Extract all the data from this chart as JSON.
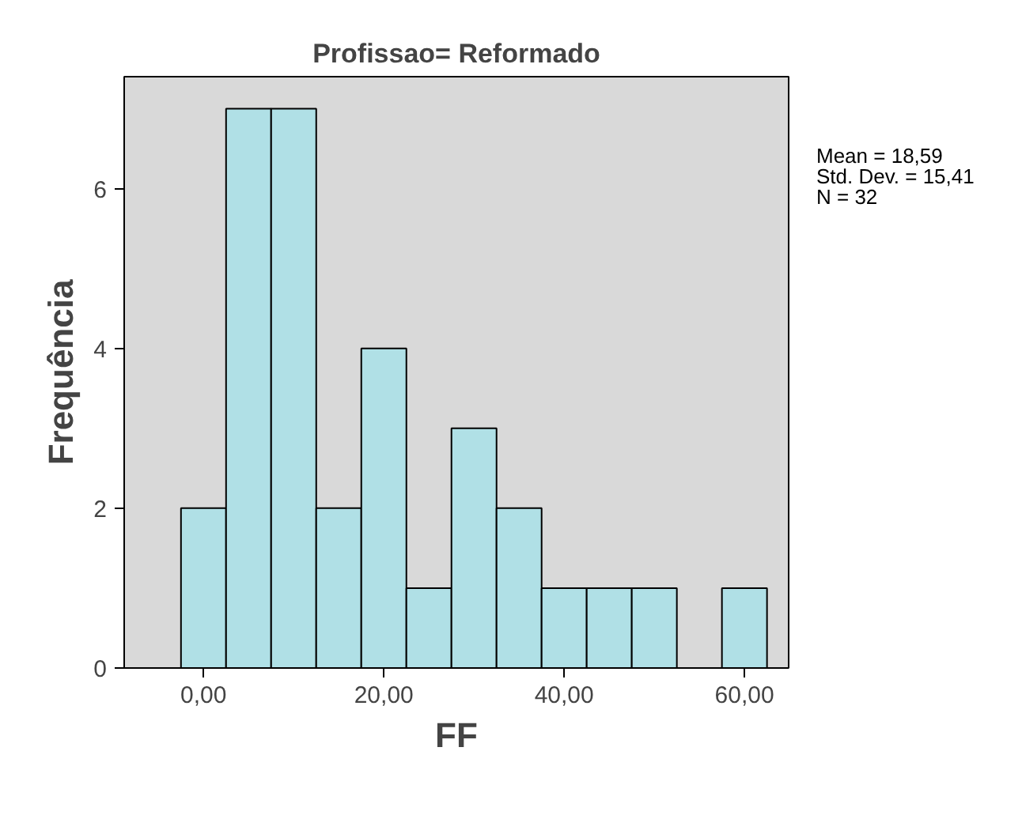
{
  "chart_data": {
    "type": "histogram",
    "title": "Profissao= Reformado",
    "xlabel": "FF",
    "ylabel": "Frequência",
    "bins": [
      -2.5,
      2.5,
      7.5,
      12.5,
      17.5,
      22.5,
      27.5,
      32.5,
      37.5,
      42.5,
      47.5,
      52.5,
      57.5,
      62.5
    ],
    "values": [
      2,
      7,
      7,
      2,
      4,
      1,
      3,
      2,
      1,
      1,
      1,
      0,
      1
    ],
    "color": "#b0e0e6",
    "xlim": [
      -8.8,
      64.9
    ],
    "ylim": [
      0,
      7.4
    ],
    "xticks": [
      {
        "value": 0,
        "label": "0,00"
      },
      {
        "value": 20,
        "label": "20,00"
      },
      {
        "value": 40,
        "label": "40,00"
      },
      {
        "value": 60,
        "label": "60,00"
      }
    ],
    "yticks": [
      0,
      2,
      4,
      6
    ],
    "grid": false,
    "annotations": [
      "Mean = 18,59",
      "Std. Dev. = 15,41",
      "N = 32"
    ]
  }
}
